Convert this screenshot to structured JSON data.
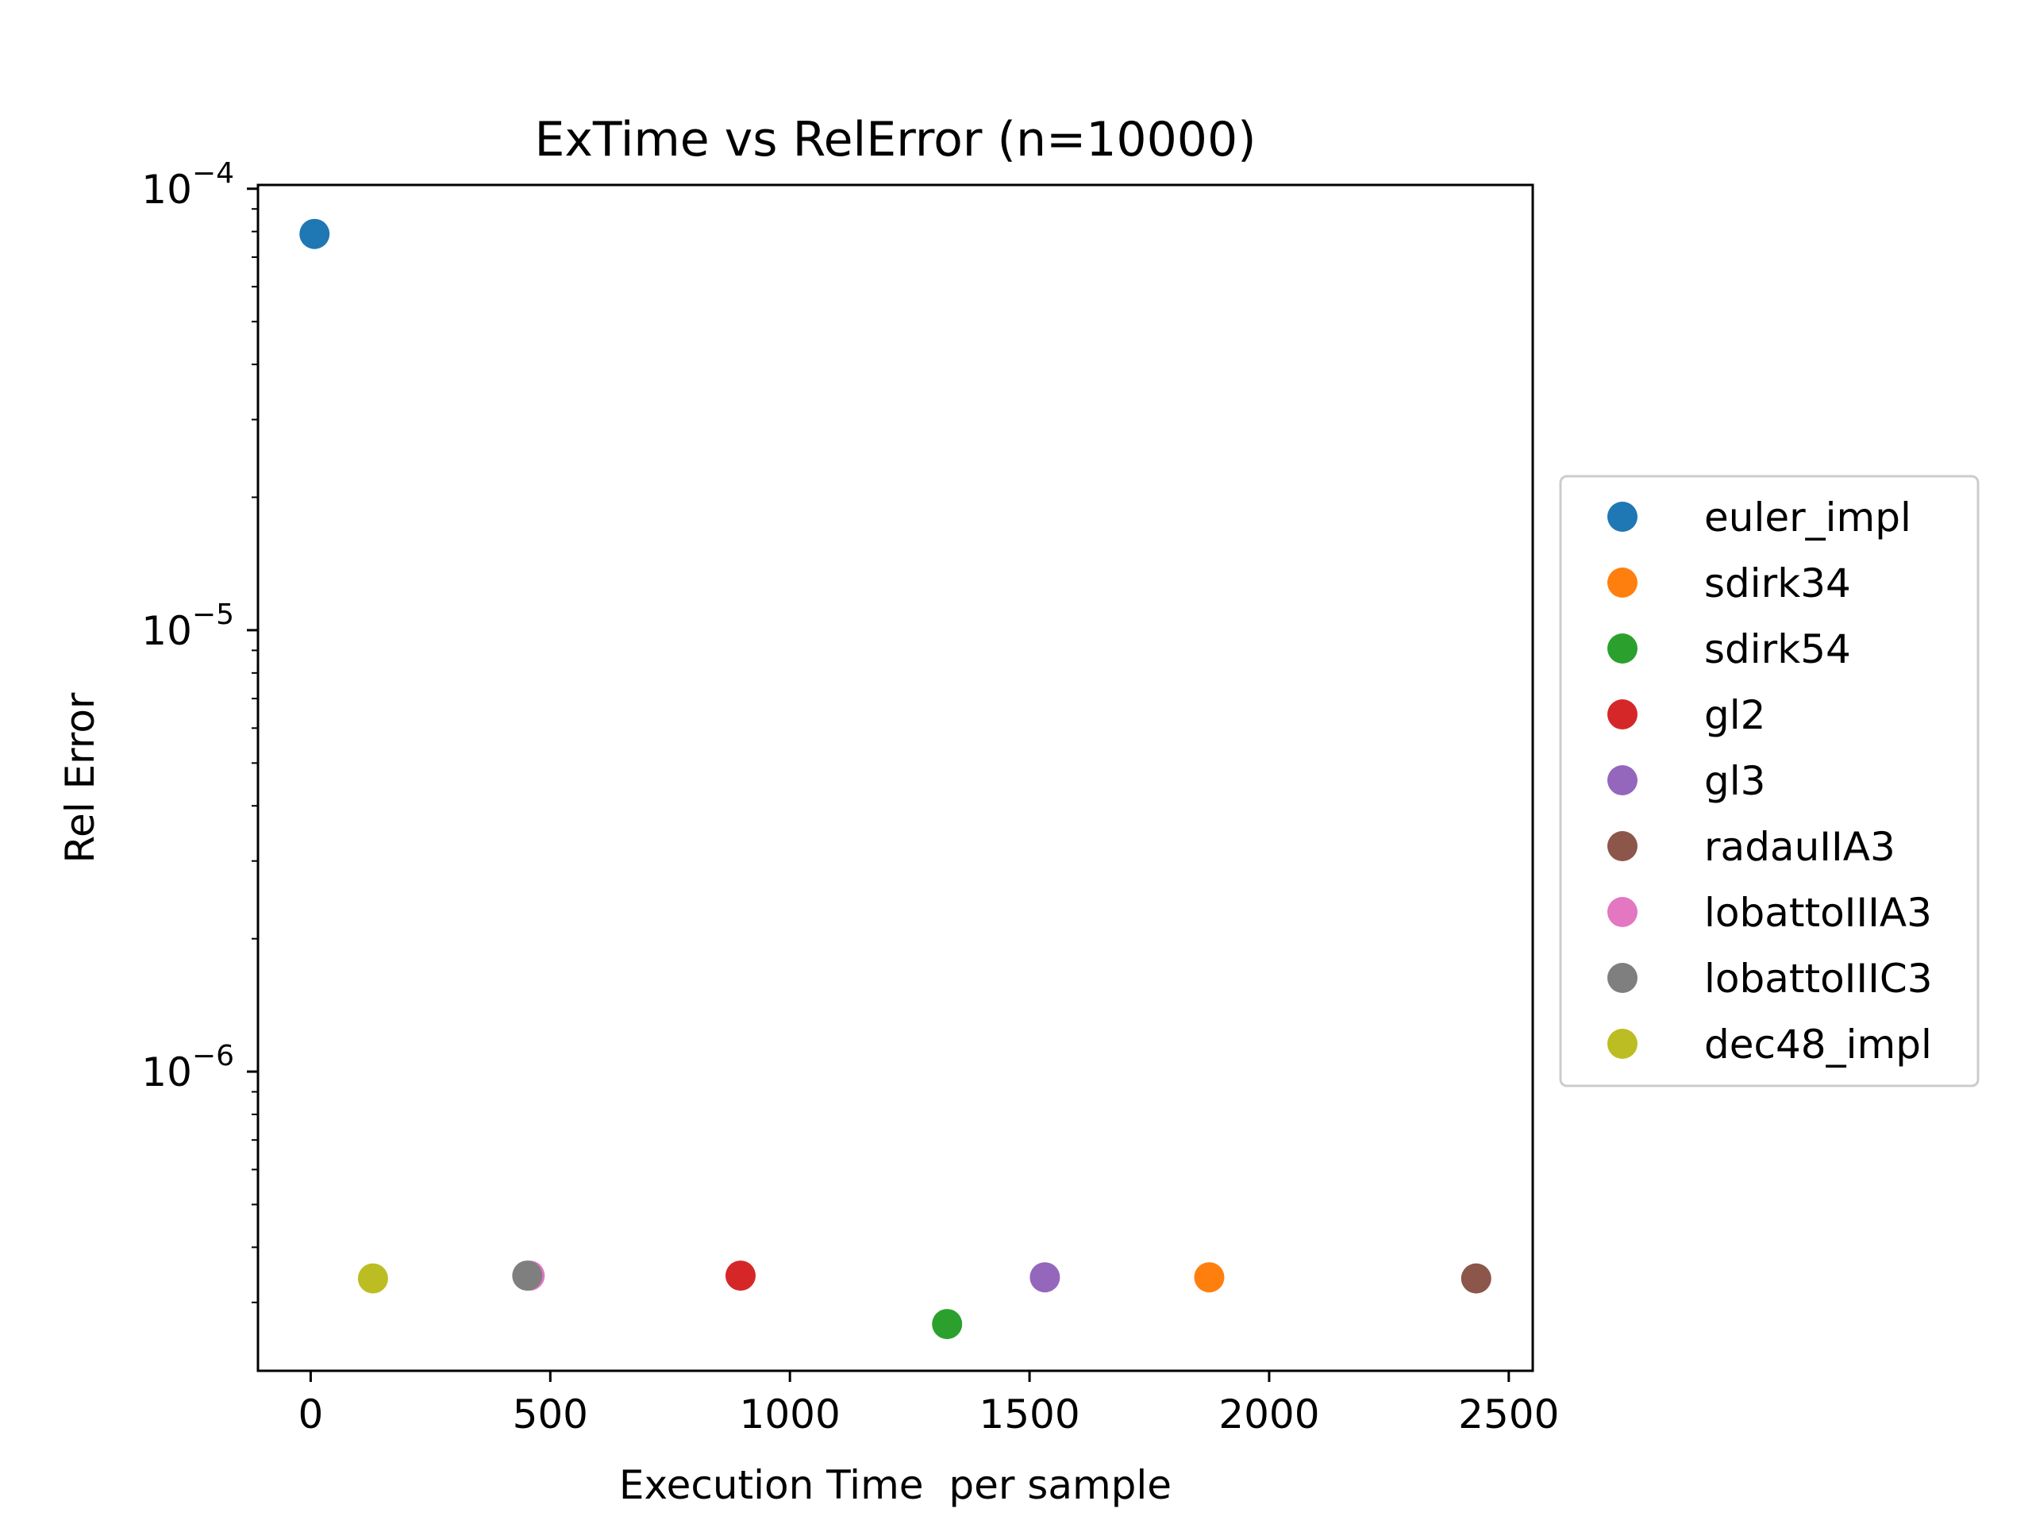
{
  "chart_data": {
    "type": "scatter",
    "title": "ExTime vs RelError (n=10000)",
    "xlabel": "Execution Time  per sample",
    "ylabel": "Rel Error",
    "xlim": [
      -110,
      2550
    ],
    "ylim": [
      2.1e-07,
      0.000102
    ],
    "yscale": "log",
    "x_ticks": [
      0,
      500,
      1000,
      1500,
      2000,
      2500
    ],
    "x_tick_labels": [
      "0",
      "500",
      "1000",
      "1500",
      "2000",
      "2500"
    ],
    "y_ticks": [
      1e-06,
      1e-05,
      0.0001
    ],
    "y_tick_labels": [
      {
        "base": "10",
        "exp": "−6"
      },
      {
        "base": "10",
        "exp": "−5"
      },
      {
        "base": "10",
        "exp": "−4"
      }
    ],
    "grid": false,
    "legend_position": "center-right outside",
    "series": [
      {
        "name": "euler_impl",
        "color": "#1f77b4",
        "points": [
          {
            "x": 8,
            "y": 7.9e-05
          }
        ]
      },
      {
        "name": "sdirk34",
        "color": "#ff7f0e",
        "points": [
          {
            "x": 1875,
            "y": 3.42e-07
          }
        ]
      },
      {
        "name": "sdirk54",
        "color": "#2ca02c",
        "points": [
          {
            "x": 1328,
            "y": 2.68e-07
          }
        ]
      },
      {
        "name": "gl2",
        "color": "#d62728",
        "points": [
          {
            "x": 897,
            "y": 3.45e-07
          }
        ]
      },
      {
        "name": "gl3",
        "color": "#9467bd",
        "points": [
          {
            "x": 1532,
            "y": 3.42e-07
          }
        ]
      },
      {
        "name": "radauIIA3",
        "color": "#8c564b",
        "points": [
          {
            "x": 2432,
            "y": 3.4e-07
          }
        ]
      },
      {
        "name": "lobattoIIIA3",
        "color": "#e377c2",
        "points": [
          {
            "x": 457,
            "y": 3.45e-07
          }
        ]
      },
      {
        "name": "lobattoIIIC3",
        "color": "#7f7f7f",
        "points": [
          {
            "x": 452,
            "y": 3.45e-07
          }
        ]
      },
      {
        "name": "dec48_impl",
        "color": "#bcbd22",
        "points": [
          {
            "x": 130,
            "y": 3.4e-07
          }
        ]
      }
    ]
  }
}
